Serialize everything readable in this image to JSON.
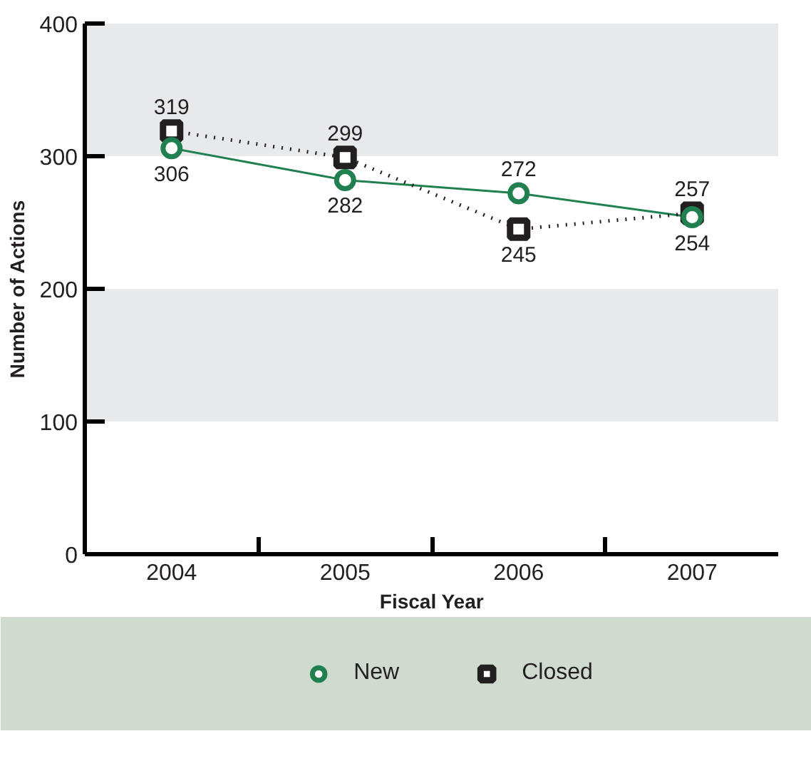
{
  "chart_data": {
    "type": "line",
    "xlabel": "Fiscal Year",
    "ylabel": "Number of Actions",
    "categories": [
      "2004",
      "2005",
      "2006",
      "2007"
    ],
    "series": [
      {
        "name": "New",
        "color": "#21804f",
        "values": [
          306,
          282,
          272,
          254
        ],
        "marker": "circle",
        "line_style": "solid"
      },
      {
        "name": "Closed",
        "color": "#231f20",
        "values": [
          319,
          299,
          245,
          257
        ],
        "marker": "square",
        "line_style": "dotted"
      }
    ],
    "ylim": [
      0,
      400
    ],
    "yticks": [
      0,
      100,
      200,
      300,
      400
    ],
    "bands": [
      {
        "axis": "y",
        "from": 300,
        "to": 400,
        "color": "#e8e9eb"
      },
      {
        "axis": "y",
        "from": 100,
        "to": 200,
        "color": "#e8e9eb"
      }
    ],
    "data_labels": true,
    "legend": "bottom",
    "grid": false
  }
}
